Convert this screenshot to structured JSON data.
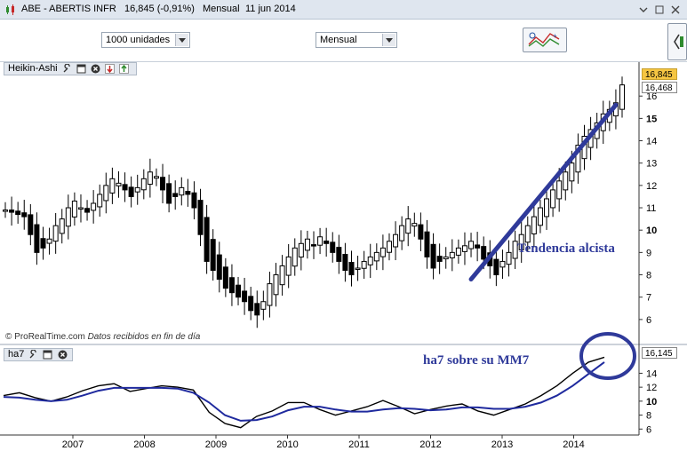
{
  "window": {
    "symbol": "ABE - ABERTIS INFR",
    "price_change": "16,845 (-0,91%)",
    "period": "Mensual",
    "date": "11 jun 2014"
  },
  "toolbar": {
    "quantity_select": "1000 unidades",
    "period_select": "Mensual"
  },
  "price_panel": {
    "title": "Heikin-Ashi",
    "last_price": "16,845",
    "ref_price": "16,468",
    "copyright": "© ProRealTime.com",
    "data_note": "Datos recibidos en fin de día",
    "annotation": "Tendencia alcista"
  },
  "indicator_panel": {
    "title": "ha7",
    "last_value": "16,145",
    "annotation": "ha7 sobre su MM7"
  },
  "colors": {
    "trend_line": "#2f3a9a",
    "ma_line": "#1f2a9e",
    "last_price_bg": "#f5c542"
  },
  "chart_data": [
    {
      "type": "candlestick",
      "chart_style": "heikin-ashi",
      "x_tick_labels": [
        "2007",
        "2008",
        "2009",
        "2010",
        "2011",
        "2012",
        "2013",
        "2014"
      ],
      "y_tick_labels": [
        "6",
        "7",
        "8",
        "9",
        "10",
        "11",
        "12",
        "13",
        "14",
        "15",
        "16"
      ],
      "ylim": [
        5.2,
        17.2
      ],
      "grid": false,
      "values": [
        10.9,
        10.8,
        10.7,
        10.6,
        9.8,
        9.0,
        9.2,
        9.6,
        10.2,
        10.5,
        11.0,
        11.3,
        11.0,
        10.8,
        11.2,
        11.6,
        12.0,
        12.3,
        12.1,
        11.8,
        11.5,
        11.9,
        12.3,
        12.6,
        12.4,
        11.8,
        11.2,
        11.5,
        11.9,
        11.6,
        11.0,
        9.8,
        8.6,
        8.2,
        7.8,
        7.4,
        7.2,
        7.0,
        6.8,
        6.4,
        6.2,
        6.8,
        7.6,
        8.0,
        8.4,
        8.8,
        9.2,
        9.4,
        9.6,
        9.3,
        9.7,
        9.4,
        9.0,
        8.6,
        8.2,
        8.0,
        8.3,
        8.6,
        8.8,
        9.0,
        9.2,
        9.5,
        9.8,
        10.2,
        10.5,
        10.3,
        9.6,
        8.8,
        8.3,
        8.6,
        8.8,
        9.0,
        9.2,
        9.3,
        9.5,
        9.2,
        8.7,
        8.4,
        8.0,
        8.6,
        9.0,
        9.5,
        9.8,
        10.2,
        10.6,
        11.0,
        11.4,
        11.8,
        12.2,
        12.6,
        13.0,
        13.8,
        14.2,
        14.5,
        14.8,
        15.2,
        15.4,
        15.7,
        16.5
      ],
      "trend_line": {
        "start": {
          "date": "2012-07",
          "price": 7.8
        },
        "end": {
          "date": "2014-06",
          "price": 15.6
        }
      }
    },
    {
      "type": "line",
      "x_tick_labels": [
        "2007",
        "2008",
        "2009",
        "2010",
        "2011",
        "2012",
        "2013",
        "2014"
      ],
      "y_tick_labels": [
        "6",
        "8",
        "10",
        "12",
        "14"
      ],
      "ylim": [
        5.4,
        16.6
      ],
      "grid": false,
      "series": [
        {
          "values": [
            10.8,
            11.2,
            10.5,
            10.0,
            10.6,
            11.5,
            12.2,
            12.5,
            11.4,
            11.8,
            12.2,
            12.0,
            11.6,
            8.4,
            6.8,
            6.2,
            7.8,
            8.6,
            9.8,
            9.8,
            8.8,
            8.0,
            8.6,
            9.2,
            10.1,
            9.2,
            8.2,
            8.8,
            9.3,
            9.6,
            8.6,
            8.0,
            8.8,
            9.6,
            10.8,
            12.2,
            14.0,
            15.6,
            16.3
          ]
        },
        {
          "values": [
            10.6,
            10.5,
            10.2,
            10.0,
            10.2,
            10.8,
            11.5,
            11.9,
            11.9,
            11.9,
            11.9,
            11.8,
            11.2,
            9.8,
            8.0,
            7.2,
            7.3,
            7.8,
            8.7,
            9.2,
            9.2,
            8.8,
            8.5,
            8.5,
            8.8,
            9.0,
            8.9,
            8.7,
            8.8,
            9.1,
            9.1,
            8.9,
            8.9,
            9.2,
            9.8,
            10.8,
            12.2,
            13.9,
            15.6
          ]
        }
      ]
    }
  ]
}
